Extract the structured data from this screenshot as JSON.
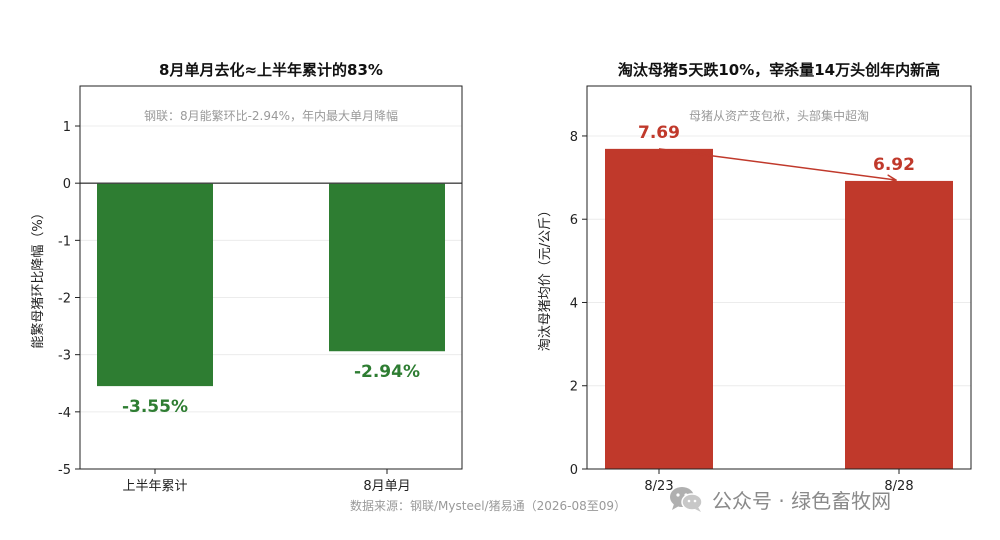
{
  "colors": {
    "green": "#2e7d32",
    "red": "#c0392b",
    "annotation_gray": "#9a9a9a"
  },
  "source_text": "数据来源：钢联/Mysteel/猪易通（2026-08至09）",
  "watermark": {
    "text": "公众号 · 绿色畜牧网",
    "icon": "wechat-icon"
  },
  "chart_data": [
    {
      "type": "bar",
      "title": "8月单月去化≈上半年累计的83%",
      "annotation": "钢联：8月能繁环比-2.94%，年内最大单月降幅",
      "ylabel": "能繁母猪环比降幅（%）",
      "xlabel": "",
      "ylim": [
        -5,
        1.7
      ],
      "yticks": [
        -5,
        -4,
        -3,
        -2,
        -1,
        0,
        1
      ],
      "categories": [
        "上半年累计",
        "8月单月"
      ],
      "values": [
        -3.55,
        -2.94
      ],
      "data_labels": [
        "-3.55%",
        "-2.94%"
      ],
      "color": "#2e7d32",
      "grid": true,
      "zero_line": true
    },
    {
      "type": "bar",
      "title": "淘汰母猪5天跌10%，宰杀量14万头创年内新高",
      "annotation": "母猪从资产变包袱，头部集中超淘",
      "ylabel": "淘汰母猪均价（元/公斤）",
      "xlabel": "",
      "ylim": [
        0,
        9.2
      ],
      "yticks": [
        0,
        2,
        4,
        6,
        8
      ],
      "categories": [
        "8/23",
        "8/28"
      ],
      "values": [
        7.69,
        6.92
      ],
      "data_labels": [
        "7.69",
        "6.92"
      ],
      "color": "#c0392b",
      "grid": true,
      "trend_arrow": true
    }
  ]
}
